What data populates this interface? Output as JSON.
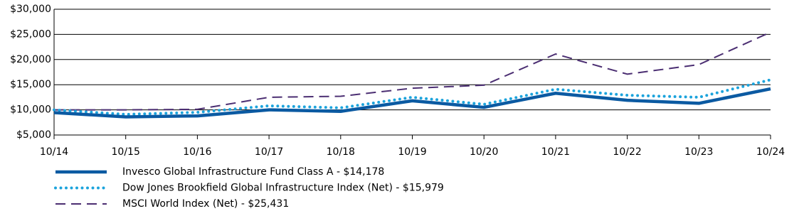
{
  "chart_data": {
    "type": "line",
    "categories": [
      "10/14",
      "10/15",
      "10/16",
      "10/17",
      "10/18",
      "10/19",
      "10/20",
      "10/21",
      "10/22",
      "10/23",
      "10/24"
    ],
    "series": [
      {
        "name": "Invesco Global Infrastructure Fund Class A - $14,178",
        "color": "#0b5aa2",
        "style": "solid",
        "values": [
          9450,
          8600,
          8800,
          10000,
          9700,
          11800,
          10500,
          13300,
          11900,
          11300,
          14178
        ]
      },
      {
        "name": "Dow Jones Brookfield Global Infrastructure Index (Net) - $15,979",
        "color": "#1ba3dc",
        "style": "dotted",
        "values": [
          10000,
          9100,
          9500,
          10800,
          10400,
          12500,
          11100,
          14100,
          12900,
          12500,
          15979
        ]
      },
      {
        "name": "MSCI World Index (Net) - $25,431",
        "color": "#4b2e72",
        "style": "dashed",
        "values": [
          10000,
          10000,
          10100,
          12500,
          12700,
          14300,
          14900,
          21100,
          17100,
          19000,
          25431
        ]
      }
    ],
    "ylim": [
      5000,
      30000
    ],
    "yticks": [
      {
        "value": 5000,
        "label": "$5,000"
      },
      {
        "value": 10000,
        "label": "$10,000"
      },
      {
        "value": 15000,
        "label": "$15,000"
      },
      {
        "value": 20000,
        "label": "$20,000"
      },
      {
        "value": 25000,
        "label": "$25,000"
      },
      {
        "value": 30000,
        "label": "$30,000"
      }
    ],
    "grid": true
  }
}
